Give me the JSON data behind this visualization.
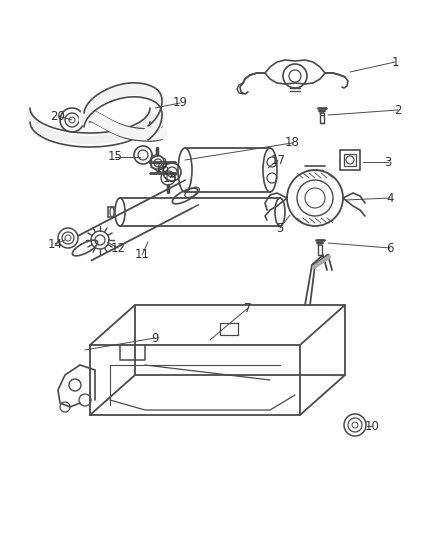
{
  "background_color": "#ffffff",
  "line_color": "#4a4a4a",
  "text_color": "#333333",
  "fig_width": 4.38,
  "fig_height": 5.33,
  "dpi": 100
}
